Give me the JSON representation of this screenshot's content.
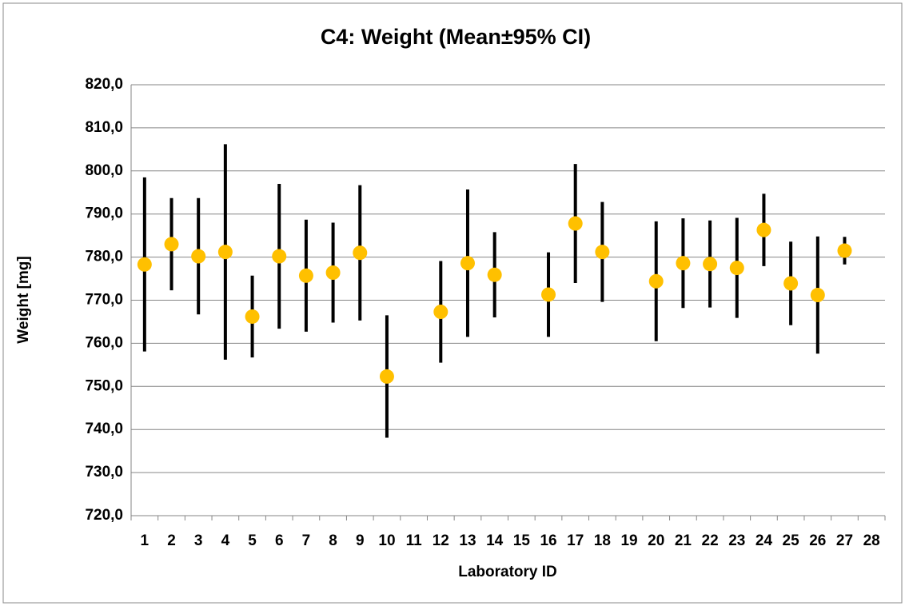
{
  "chart_data": {
    "type": "errorbar",
    "title": "C4: Weight (Mean±95% CI)",
    "x_label": "Laboratory ID",
    "y_label": "Weight [mg]",
    "categories": [
      "1",
      "2",
      "3",
      "4",
      "5",
      "6",
      "7",
      "8",
      "9",
      "10",
      "11",
      "12",
      "13",
      "14",
      "15",
      "16",
      "17",
      "18",
      "19",
      "20",
      "21",
      "22",
      "23",
      "24",
      "25",
      "26",
      "27",
      "28"
    ],
    "values": [
      778.3,
      783.0,
      780.2,
      781.2,
      766.2,
      780.2,
      775.7,
      776.4,
      781.0,
      752.3,
      null,
      767.3,
      778.6,
      775.9,
      null,
      771.3,
      787.8,
      781.2,
      null,
      774.4,
      778.6,
      778.4,
      777.5,
      786.3,
      773.9,
      771.2,
      781.5,
      null
    ],
    "errors": [
      20.2,
      10.7,
      13.5,
      25.0,
      9.5,
      16.8,
      13.0,
      11.6,
      15.7,
      14.2,
      null,
      11.8,
      17.1,
      9.9,
      null,
      9.8,
      13.8,
      11.6,
      null,
      13.9,
      10.4,
      10.1,
      11.6,
      8.4,
      9.7,
      13.6,
      3.2,
      null
    ],
    "color": "#ffc000",
    "error_color": "#000000",
    "ylim": [
      720,
      820
    ],
    "yticks": [
      {
        "value": 720,
        "label": "720,0"
      },
      {
        "value": 730,
        "label": "730,0"
      },
      {
        "value": 740,
        "label": "740,0"
      },
      {
        "value": 750,
        "label": "750,0"
      },
      {
        "value": 760,
        "label": "760,0"
      },
      {
        "value": 770,
        "label": "770,0"
      },
      {
        "value": 780,
        "label": "780,0"
      },
      {
        "value": 790,
        "label": "790,0"
      },
      {
        "value": 800,
        "label": "800,0"
      },
      {
        "value": 810,
        "label": "810,0"
      },
      {
        "value": 820,
        "label": "820,0"
      }
    ],
    "grid": true
  }
}
